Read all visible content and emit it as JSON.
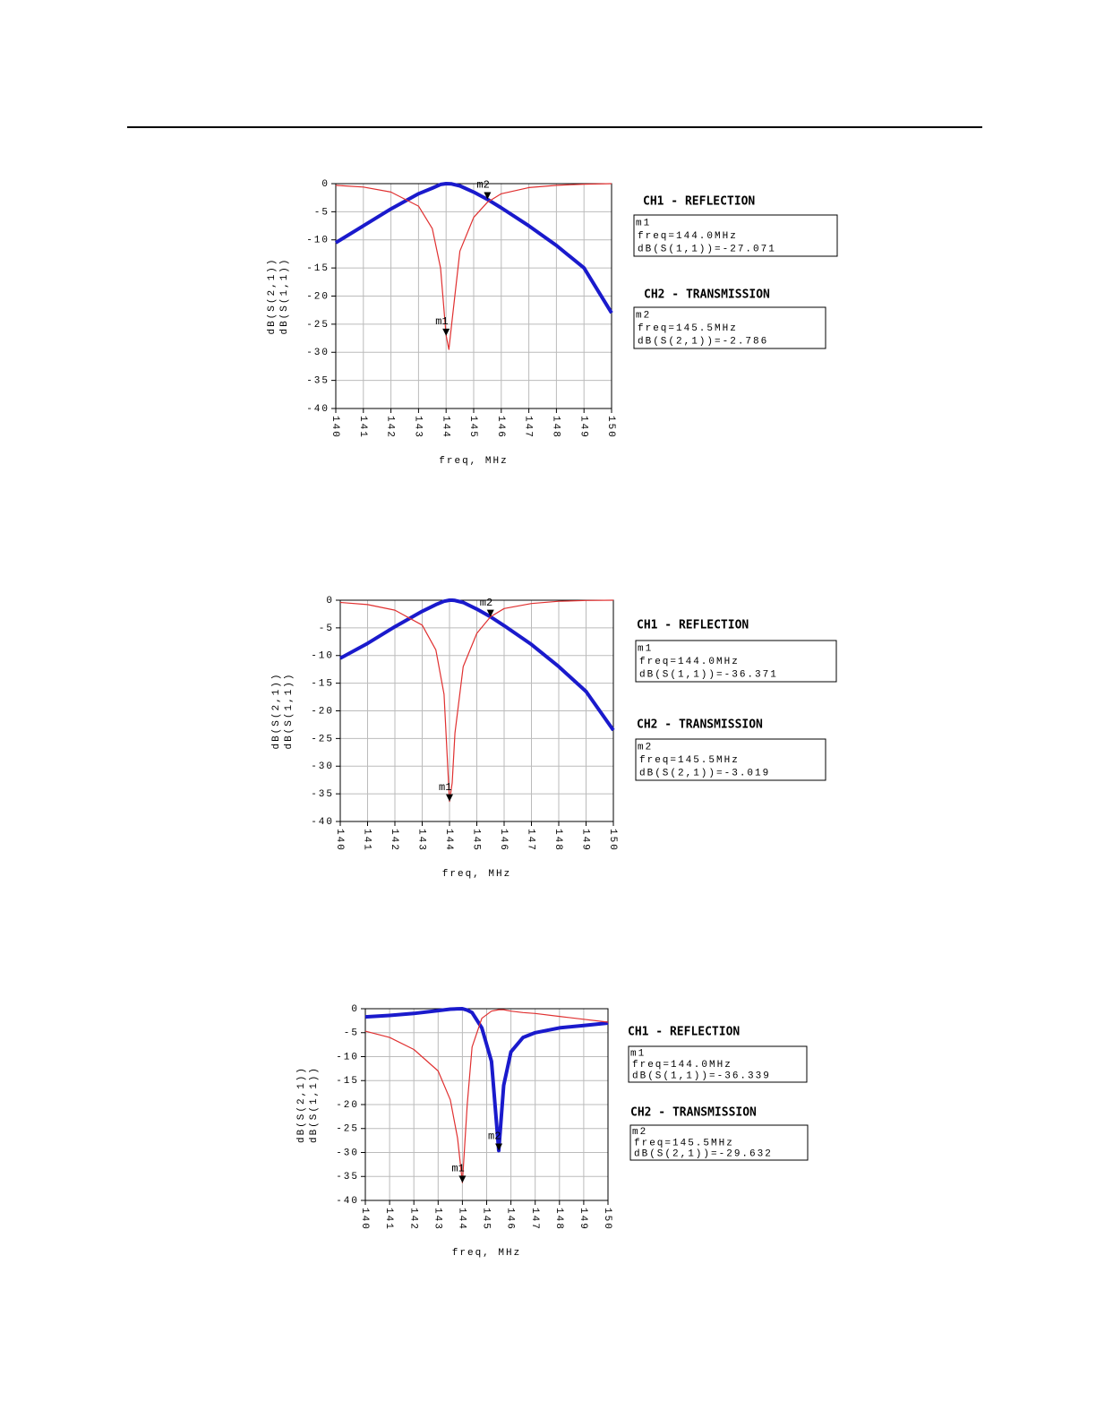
{
  "chart_data": [
    {
      "type": "line",
      "xlabel": "freq, MHz",
      "x": [
        140,
        141,
        142,
        143,
        143.5,
        143.8,
        144,
        144.1,
        144.2,
        144.5,
        145,
        145.5,
        146,
        147,
        148,
        149,
        150
      ],
      "series": [
        {
          "name": "dB(S(2,1))",
          "color": "#1a1acc",
          "values": [
            -10.5,
            -7.5,
            -4.5,
            -1.8,
            -0.8,
            -0.15,
            0,
            -0.02,
            -0.05,
            -0.4,
            -1.5,
            -2.8,
            -4.3,
            -7.5,
            -11,
            -15,
            -23
          ]
        },
        {
          "name": "dB(S(1,1))",
          "color": "#e03030",
          "values": [
            -0.3,
            -0.6,
            -1.5,
            -4,
            -8,
            -15,
            -27,
            -29.5,
            -25,
            -12,
            -6,
            -3.3,
            -1.8,
            -0.7,
            -0.3,
            -0.1,
            0
          ]
        }
      ],
      "xlim": [
        140,
        150
      ],
      "xticks": [
        140,
        141,
        142,
        143,
        144,
        145,
        146,
        147,
        148,
        149,
        150
      ],
      "ylim": [
        -40,
        0
      ],
      "yticks": [
        0,
        -5,
        -10,
        -15,
        -20,
        -25,
        -30,
        -35,
        -40
      ],
      "grid": true,
      "markers": [
        {
          "name": "m1",
          "x": 144.0,
          "y": -27.071,
          "heading": "CH1 - REFLECTION",
          "readout": [
            "freq=144.0MHz",
            "dB(S(1,1))=-27.071"
          ]
        },
        {
          "name": "m2",
          "x": 145.5,
          "y": -2.786,
          "heading": "CH2 - TRANSMISSION",
          "readout": [
            "freq=145.5MHz",
            "dB(S(2,1))=-2.786"
          ]
        }
      ]
    },
    {
      "type": "line",
      "xlabel": "freq, MHz",
      "x": [
        140,
        141,
        142,
        143,
        143.5,
        143.8,
        144,
        144.1,
        144.2,
        144.5,
        145,
        145.5,
        146,
        147,
        148,
        149,
        150
      ],
      "series": [
        {
          "name": "dB(S(2,1))",
          "color": "#1a1acc",
          "values": [
            -10.5,
            -7.8,
            -4.8,
            -2,
            -0.8,
            -0.2,
            0,
            0,
            -0.05,
            -0.4,
            -1.6,
            -3,
            -4.6,
            -8,
            -12,
            -16.5,
            -23.5
          ]
        },
        {
          "name": "dB(S(1,1))",
          "color": "#e03030",
          "values": [
            -0.4,
            -0.8,
            -1.8,
            -4.5,
            -9,
            -17,
            -36.4,
            -33,
            -24,
            -12,
            -6,
            -3,
            -1.5,
            -0.6,
            -0.2,
            -0.05,
            0
          ]
        }
      ],
      "xlim": [
        140,
        150
      ],
      "xticks": [
        140,
        141,
        142,
        143,
        144,
        145,
        146,
        147,
        148,
        149,
        150
      ],
      "ylim": [
        -40,
        0
      ],
      "yticks": [
        0,
        -5,
        -10,
        -15,
        -20,
        -25,
        -30,
        -35,
        -40
      ],
      "grid": true,
      "markers": [
        {
          "name": "m1",
          "x": 144.0,
          "y": -36.371,
          "heading": "CH1 - REFLECTION",
          "readout": [
            "freq=144.0MHz",
            "dB(S(1,1))=-36.371"
          ]
        },
        {
          "name": "m2",
          "x": 145.5,
          "y": -3.019,
          "heading": "CH2 - TRANSMISSION",
          "readout": [
            "freq=145.5MHz",
            "dB(S(2,1))=-3.019"
          ]
        }
      ]
    },
    {
      "type": "line",
      "xlabel": "freq, MHz",
      "x": [
        140,
        141,
        142,
        143,
        143.5,
        143.8,
        144,
        144.2,
        144.4,
        144.8,
        145.2,
        145.5,
        145.7,
        146,
        146.5,
        147,
        148,
        149,
        150
      ],
      "series": [
        {
          "name": "dB(S(2,1))",
          "color": "#1a1acc",
          "values": [
            -1.7,
            -1.4,
            -1,
            -0.4,
            -0.1,
            -0.02,
            0,
            -0.3,
            -0.8,
            -4,
            -11,
            -29.6,
            -16,
            -9,
            -6,
            -5,
            -4,
            -3.5,
            -3
          ]
        },
        {
          "name": "dB(S(1,1))",
          "color": "#e03030",
          "values": [
            -4.7,
            -6,
            -8.5,
            -13,
            -19,
            -27,
            -36.3,
            -20,
            -8,
            -2,
            -0.5,
            -0.2,
            -0.2,
            -0.5,
            -0.8,
            -1,
            -1.6,
            -2.2,
            -2.8
          ]
        }
      ],
      "xlim": [
        140,
        150
      ],
      "xticks": [
        140,
        141,
        142,
        143,
        144,
        145,
        146,
        147,
        148,
        149,
        150
      ],
      "ylim": [
        -40,
        0
      ],
      "yticks": [
        0,
        -5,
        -10,
        -15,
        -20,
        -25,
        -30,
        -35,
        -40
      ],
      "grid": true,
      "markers": [
        {
          "name": "m1",
          "x": 144.0,
          "y": -36.339,
          "heading": "CH1 - REFLECTION",
          "readout": [
            "freq=144.0MHz",
            "dB(S(1,1))=-36.339"
          ]
        },
        {
          "name": "m2",
          "x": 145.5,
          "y": -29.632,
          "heading": "CH2 - TRANSMISSION",
          "readout": [
            "freq=145.5MHz",
            "dB(S(2,1))=-29.632"
          ]
        }
      ]
    }
  ]
}
